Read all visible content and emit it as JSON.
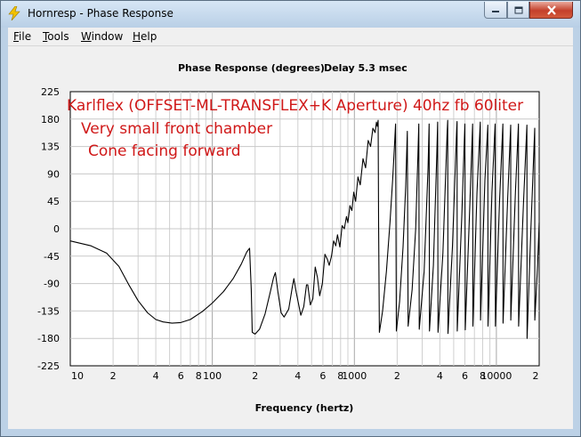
{
  "window": {
    "title": "Hornresp - Phase Response",
    "icon": "lightning-bolt-icon"
  },
  "menu": [
    {
      "name": "menu-file",
      "accel": "F",
      "rest": "ile"
    },
    {
      "name": "menu-tools",
      "accel": "T",
      "rest": "ools"
    },
    {
      "name": "menu-window",
      "accel": "W",
      "rest": "indow"
    },
    {
      "name": "menu-help",
      "accel": "H",
      "rest": "elp"
    }
  ],
  "colors": {
    "annotation": "#d01818",
    "trace": "#000000",
    "close_button": "#c4402b"
  },
  "chart_data": {
    "type": "line",
    "title": "Phase Response (degrees)",
    "subtitle": "Delay 5.3 msec",
    "xlabel": "Frequency (hertz)",
    "ylabel": "",
    "x_scale": "log",
    "xlim": [
      10,
      20000
    ],
    "ylim": [
      -225,
      225
    ],
    "y_ticks": [
      "225",
      "180",
      "135",
      "90",
      "45",
      "0",
      "-45",
      "-90",
      "-135",
      "-180",
      "-225"
    ],
    "x_ticks": [
      {
        "v": 10,
        "label": "10"
      },
      {
        "v": 20,
        "label": "2"
      },
      {
        "v": 40,
        "label": "4"
      },
      {
        "v": 60,
        "label": "6"
      },
      {
        "v": 80,
        "label": "8"
      },
      {
        "v": 100,
        "label": "100"
      },
      {
        "v": 200,
        "label": "2"
      },
      {
        "v": 400,
        "label": "4"
      },
      {
        "v": 600,
        "label": "6"
      },
      {
        "v": 800,
        "label": "8"
      },
      {
        "v": 1000,
        "label": "1000"
      },
      {
        "v": 2000,
        "label": "2"
      },
      {
        "v": 4000,
        "label": "4"
      },
      {
        "v": 6000,
        "label": "6"
      },
      {
        "v": 8000,
        "label": "8"
      },
      {
        "v": 10000,
        "label": "10000"
      },
      {
        "v": 20000,
        "label": "2"
      }
    ],
    "grid": true,
    "annotations": [
      "Karlflex (OFFSET-ML-TRANSFLEX+K Aperture) 40hz fb 60liter",
      "Very small front chamber",
      "Cone facing forward"
    ],
    "series": [
      {
        "points": [
          [
            10,
            -20
          ],
          [
            14,
            -28
          ],
          [
            18,
            -40
          ],
          [
            22,
            -62
          ],
          [
            26,
            -93
          ],
          [
            30,
            -118
          ],
          [
            35,
            -138
          ],
          [
            40,
            -149
          ],
          [
            45,
            -153
          ],
          [
            52,
            -155
          ],
          [
            60,
            -154
          ],
          [
            70,
            -149
          ],
          [
            85,
            -136
          ],
          [
            100,
            -122
          ],
          [
            120,
            -103
          ],
          [
            140,
            -82
          ],
          [
            160,
            -58
          ],
          [
            175,
            -38
          ],
          [
            183,
            -32
          ],
          [
            188,
            -100
          ],
          [
            191,
            -170
          ],
          [
            200,
            -173
          ],
          [
            215,
            -165
          ],
          [
            235,
            -140
          ],
          [
            255,
            -105
          ],
          [
            270,
            -80
          ],
          [
            278,
            -72
          ],
          [
            290,
            -105
          ],
          [
            305,
            -138
          ],
          [
            320,
            -145
          ],
          [
            345,
            -132
          ],
          [
            365,
            -97
          ],
          [
            375,
            -82
          ],
          [
            390,
            -105
          ],
          [
            420,
            -142
          ],
          [
            440,
            -128
          ],
          [
            460,
            -92
          ],
          [
            470,
            -92
          ],
          [
            490,
            -125
          ],
          [
            510,
            -115
          ],
          [
            530,
            -63
          ],
          [
            550,
            -80
          ],
          [
            570,
            -110
          ],
          [
            595,
            -90
          ],
          [
            620,
            -42
          ],
          [
            645,
            -50
          ],
          [
            665,
            -60
          ],
          [
            690,
            -45
          ],
          [
            715,
            -20
          ],
          [
            740,
            -28
          ],
          [
            760,
            -10
          ],
          [
            790,
            -30
          ],
          [
            820,
            5
          ],
          [
            850,
            0
          ],
          [
            880,
            20
          ],
          [
            900,
            10
          ],
          [
            930,
            38
          ],
          [
            960,
            30
          ],
          [
            990,
            60
          ],
          [
            1020,
            45
          ],
          [
            1060,
            85
          ],
          [
            1100,
            72
          ],
          [
            1150,
            115
          ],
          [
            1200,
            100
          ],
          [
            1250,
            145
          ],
          [
            1300,
            135
          ],
          [
            1350,
            165
          ],
          [
            1400,
            158
          ],
          [
            1430,
            175
          ],
          [
            1450,
            168
          ],
          [
            1470,
            178
          ],
          [
            1480,
            12
          ],
          [
            1500,
            -170
          ],
          [
            1580,
            -135
          ],
          [
            1680,
            -70
          ],
          [
            1780,
            10
          ],
          [
            1860,
            80
          ],
          [
            1920,
            140
          ],
          [
            1950,
            172
          ],
          [
            1975,
            -168
          ],
          [
            2080,
            -120
          ],
          [
            2200,
            -30
          ],
          [
            2300,
            70
          ],
          [
            2360,
            160
          ],
          [
            2390,
            -160
          ],
          [
            2550,
            -100
          ],
          [
            2700,
            0
          ],
          [
            2800,
            120
          ],
          [
            2840,
            172
          ],
          [
            2860,
            -165
          ],
          [
            3100,
            -70
          ],
          [
            3300,
            100
          ],
          [
            3360,
            172
          ],
          [
            3380,
            -168
          ],
          [
            3600,
            -60
          ],
          [
            3800,
            120
          ],
          [
            3860,
            175
          ],
          [
            3880,
            -170
          ],
          [
            4200,
            -40
          ],
          [
            4500,
            160
          ],
          [
            4540,
            178
          ],
          [
            4560,
            -172
          ],
          [
            4900,
            -30
          ],
          [
            5250,
            165
          ],
          [
            5280,
            176
          ],
          [
            5300,
            -168
          ],
          [
            5700,
            20
          ],
          [
            6000,
            172
          ],
          [
            6030,
            -166
          ],
          [
            6500,
            40
          ],
          [
            6800,
            172
          ],
          [
            6830,
            -160
          ],
          [
            7300,
            60
          ],
          [
            7700,
            175
          ],
          [
            7730,
            -150
          ],
          [
            8300,
            80
          ],
          [
            8700,
            170
          ],
          [
            8730,
            -160
          ],
          [
            9300,
            60
          ],
          [
            9800,
            172
          ],
          [
            9830,
            -160
          ],
          [
            10500,
            40
          ],
          [
            11100,
            172
          ],
          [
            11130,
            -155
          ],
          [
            12000,
            50
          ],
          [
            12600,
            170
          ],
          [
            12630,
            -150
          ],
          [
            13600,
            60
          ],
          [
            14300,
            172
          ],
          [
            14330,
            -160
          ],
          [
            15500,
            40
          ],
          [
            16400,
            170
          ],
          [
            16430,
            -180
          ],
          [
            17500,
            0
          ],
          [
            18600,
            165
          ],
          [
            18630,
            -150
          ],
          [
            19500,
            -60
          ],
          [
            20000,
            10
          ]
        ]
      }
    ]
  }
}
